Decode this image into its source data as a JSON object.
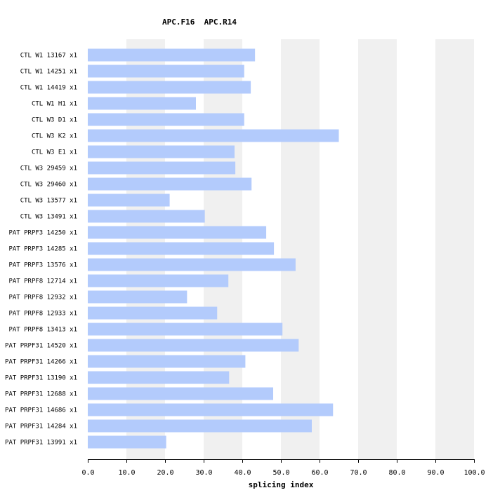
{
  "chart_data": {
    "type": "bar",
    "orientation": "horizontal",
    "title": "APC.F16  APC.R14",
    "xlabel": "splicing index",
    "ylabel": "",
    "xlim": [
      0,
      100
    ],
    "xticks": [
      "0.0",
      "10.0",
      "20.0",
      "30.0",
      "40.0",
      "50.0",
      "60.0",
      "70.0",
      "80.0",
      "90.0",
      "100.0"
    ],
    "grid": "alternating vertical bands",
    "bar_color": "#b3cbfc",
    "band_color": "#f0f0f0",
    "categories": [
      "CTL W1 13167 x1",
      "CTL W1 14251 x1",
      "CTL W1 14419 x1",
      "CTL W1 H1 x1",
      "CTL W3 D1 x1",
      "CTL W3 K2 x1",
      "CTL W3 E1 x1",
      "CTL W3 29459 x1",
      "CTL W3 29460 x1",
      "CTL W3 13577 x1",
      "CTL W3 13491 x1",
      "PAT PRPF3 14250 x1",
      "PAT PRPF3 14285 x1",
      "PAT PRPF3 13576 x1",
      "PAT PRPF8 12714 x1",
      "PAT PRPF8 12932 x1",
      "PAT PRPF8 12933 x1",
      "PAT PRPF8 13413 x1",
      "PAT PRPF31 14520 x1",
      "PAT PRPF31 14266 x1",
      "PAT PRPF31 13190 x1",
      "PAT PRPF31 12688 x1",
      "PAT PRPF31 14686 x1",
      "PAT PRPF31 14284 x1",
      "PAT PRPF31 13991 x1"
    ],
    "values": [
      43.3,
      40.5,
      42.2,
      28.0,
      40.5,
      65.0,
      38.0,
      38.2,
      42.4,
      21.2,
      30.3,
      46.2,
      48.2,
      53.8,
      36.4,
      25.7,
      33.5,
      50.4,
      54.6,
      40.8,
      36.6,
      48.0,
      63.5,
      58.0,
      20.3
    ]
  }
}
